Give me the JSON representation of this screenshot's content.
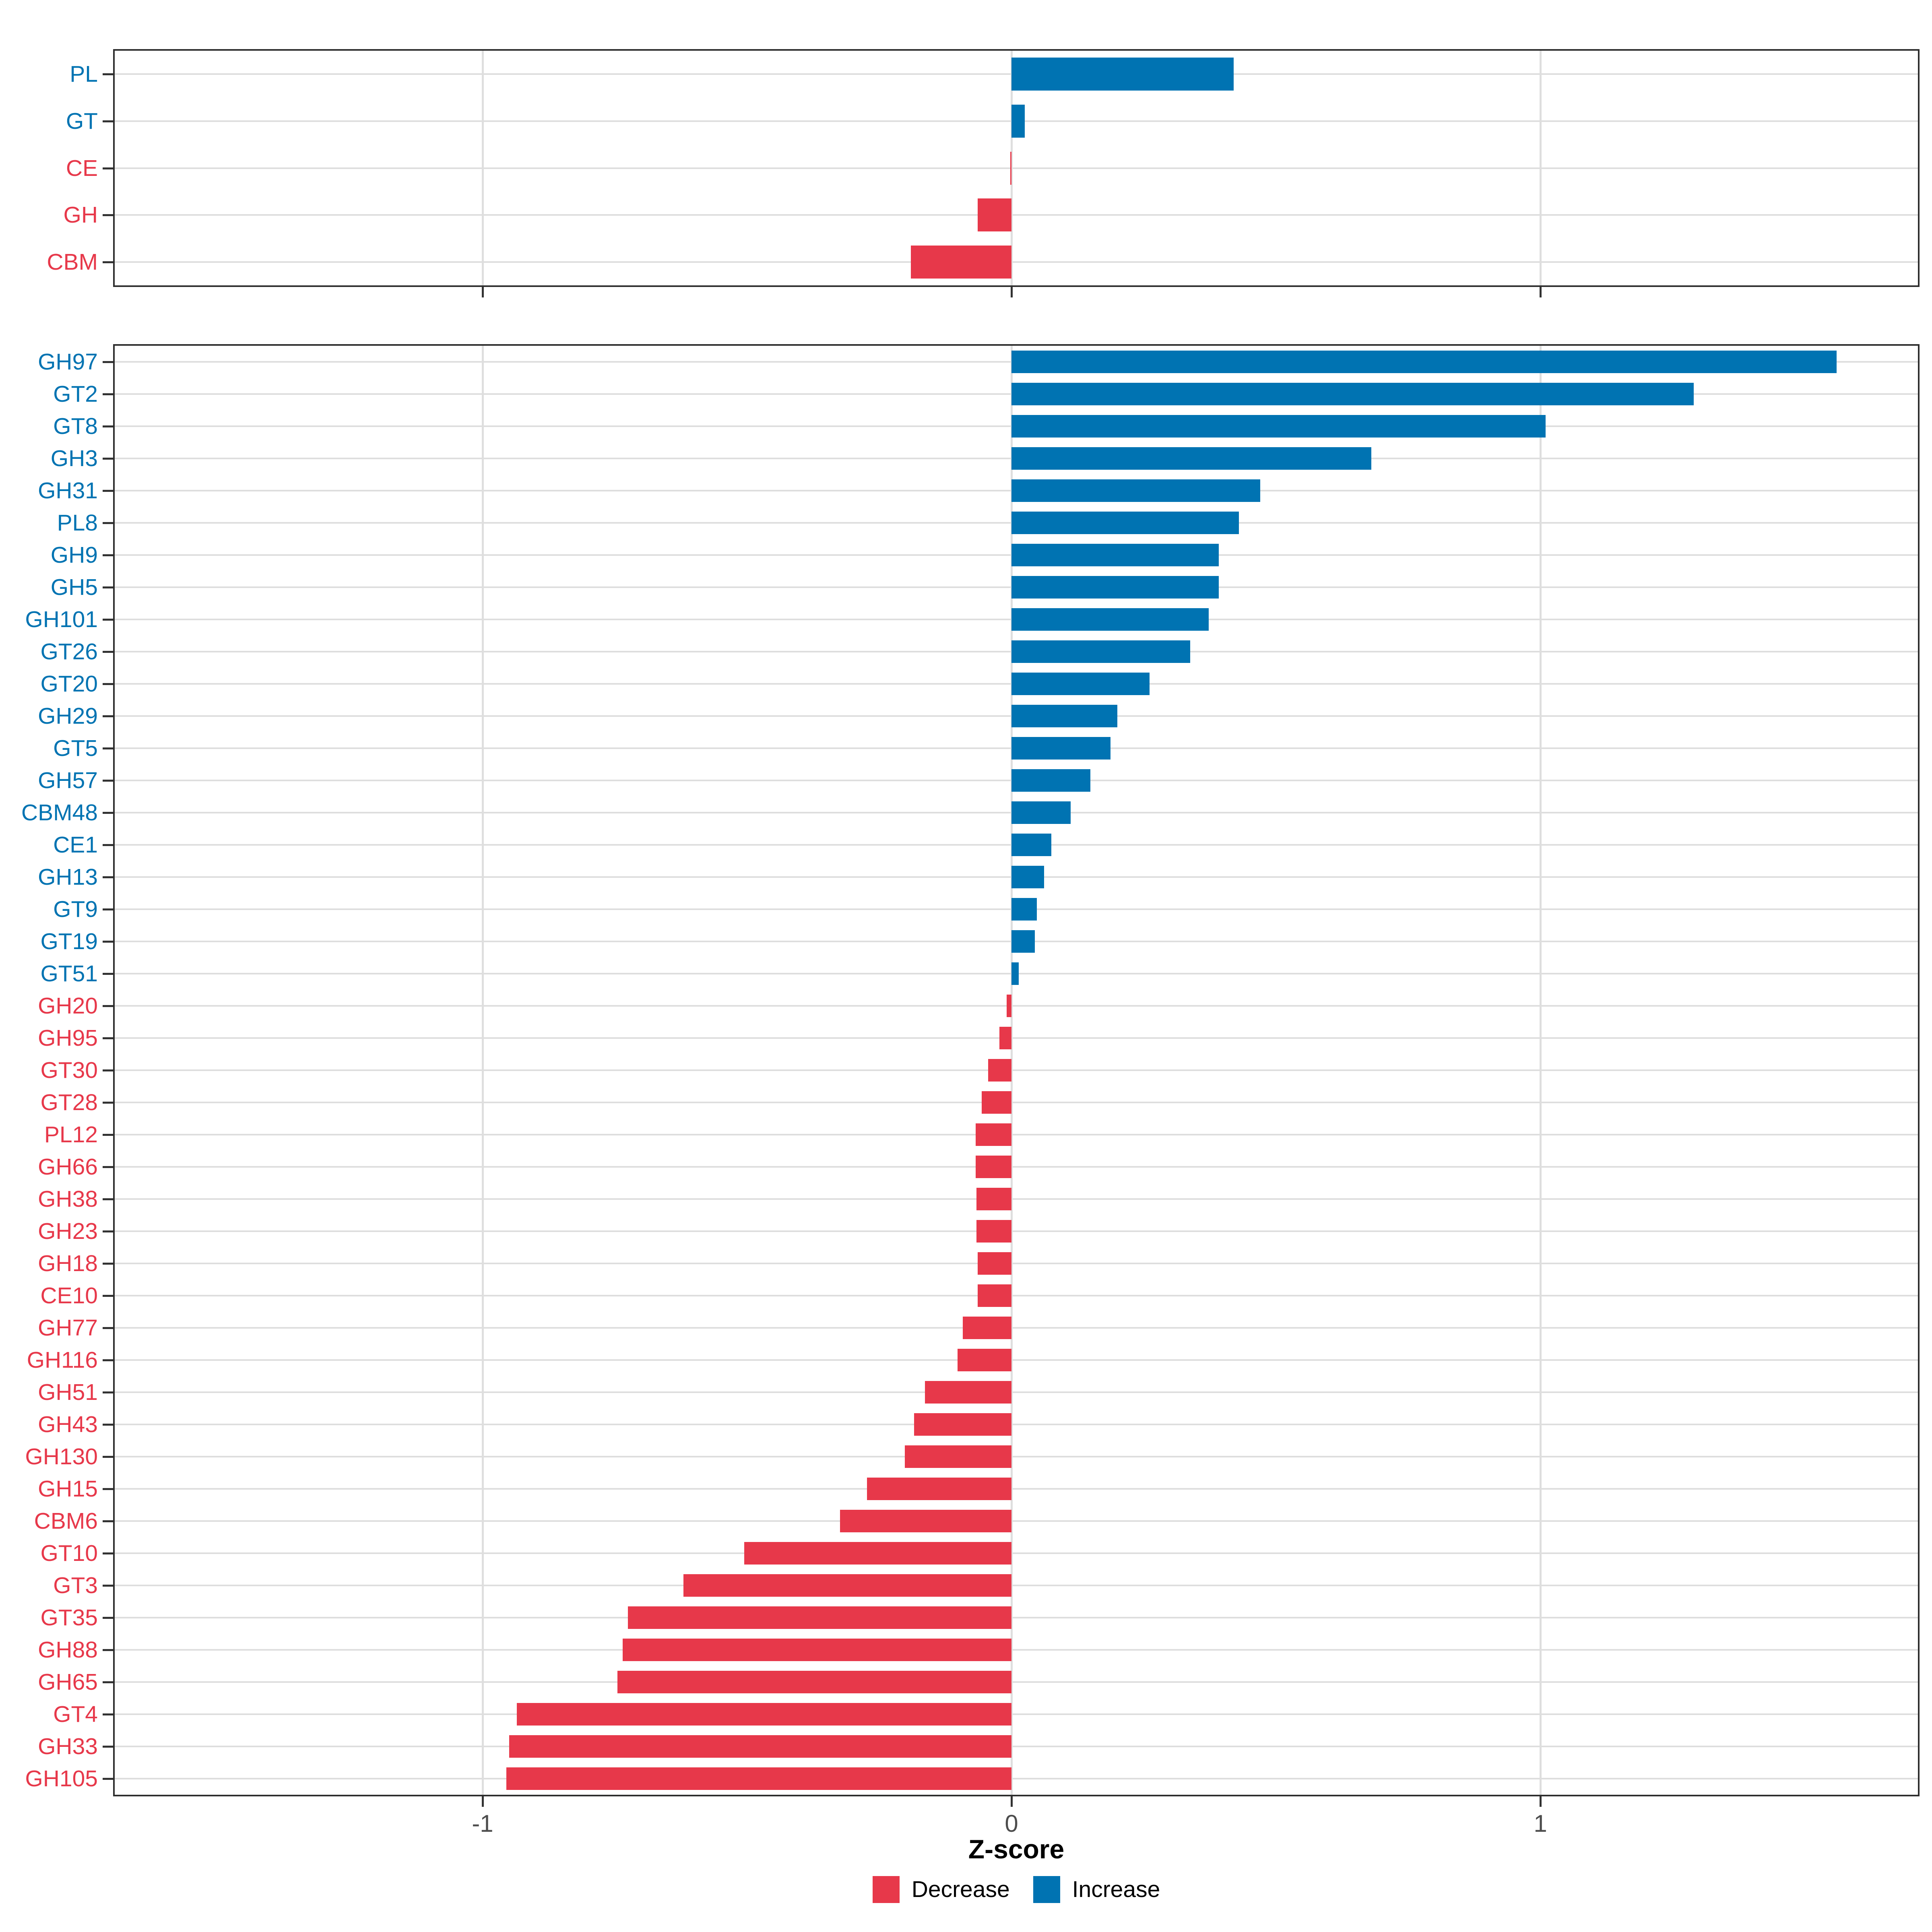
{
  "chart_data": {
    "type": "bar",
    "orientation": "horizontal",
    "xlabel": "Z-score",
    "xlim": [
      -1.7,
      1.72
    ],
    "xticks": [
      -1,
      0,
      1
    ],
    "grid": true,
    "legend_position": "bottom",
    "panels": [
      {
        "categories": [
          "PL",
          "GT",
          "CE",
          "GH",
          "CBM"
        ],
        "values": [
          0.42,
          0.025,
          -0.002,
          -0.064,
          -0.19
        ],
        "directions": [
          "Increase",
          "Increase",
          "Decrease",
          "Decrease",
          "Decrease"
        ]
      },
      {
        "categories": [
          "GH97",
          "GT2",
          "GT8",
          "GH3",
          "GH31",
          "PL8",
          "GH9",
          "GH5",
          "GH101",
          "GT26",
          "GT20",
          "GH29",
          "GT5",
          "GH57",
          "CBM48",
          "CE1",
          "GH13",
          "GT9",
          "GT19",
          "GT51",
          "GH20",
          "GH95",
          "GT30",
          "GT28",
          "PL12",
          "GH66",
          "GH38",
          "GH23",
          "GH18",
          "CE10",
          "GH77",
          "GH116",
          "GH51",
          "GH43",
          "GH130",
          "GH15",
          "CBM6",
          "GT10",
          "GT3",
          "GT35",
          "GH88",
          "GH65",
          "GT4",
          "GH33",
          "GH105"
        ],
        "values": [
          1.56,
          1.29,
          1.01,
          0.68,
          0.47,
          0.43,
          0.392,
          0.392,
          0.373,
          0.338,
          0.261,
          0.2,
          0.187,
          0.149,
          0.112,
          0.075,
          0.062,
          0.048,
          0.044,
          0.014,
          -0.009,
          -0.023,
          -0.044,
          -0.056,
          -0.068,
          -0.068,
          -0.066,
          -0.066,
          -0.064,
          -0.064,
          -0.092,
          -0.102,
          -0.164,
          -0.184,
          -0.202,
          -0.273,
          -0.324,
          -0.505,
          -0.62,
          -0.725,
          -0.735,
          -0.745,
          -0.935,
          -0.95,
          -0.955
        ],
        "directions": [
          "Increase",
          "Increase",
          "Increase",
          "Increase",
          "Increase",
          "Increase",
          "Increase",
          "Increase",
          "Increase",
          "Increase",
          "Increase",
          "Increase",
          "Increase",
          "Increase",
          "Increase",
          "Increase",
          "Increase",
          "Increase",
          "Increase",
          "Increase",
          "Decrease",
          "Decrease",
          "Decrease",
          "Decrease",
          "Decrease",
          "Decrease",
          "Decrease",
          "Decrease",
          "Decrease",
          "Decrease",
          "Decrease",
          "Decrease",
          "Decrease",
          "Decrease",
          "Decrease",
          "Decrease",
          "Decrease",
          "Decrease",
          "Decrease",
          "Decrease",
          "Decrease",
          "Decrease",
          "Decrease",
          "Decrease",
          "Decrease"
        ]
      }
    ]
  },
  "legend": {
    "items": [
      {
        "label": "Decrease",
        "color": "#e7384a"
      },
      {
        "label": "Increase",
        "color": "#0073b2"
      }
    ]
  },
  "colors": {
    "increase": "#0073b2",
    "decrease": "#e7384a",
    "gridline": "#dedede",
    "panel_border": "#2e2e2e",
    "tick": "#333333",
    "tick_label": "#4d4d4d",
    "background": "#ffffff"
  }
}
